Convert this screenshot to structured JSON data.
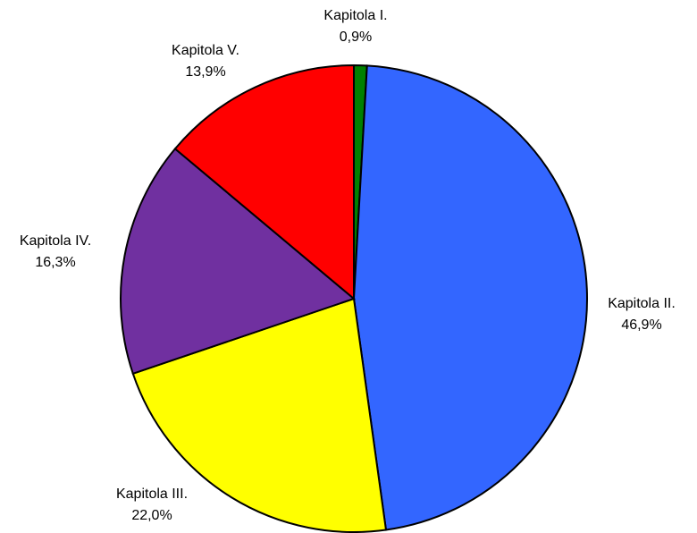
{
  "chart_data": {
    "type": "pie",
    "categories": [
      "Kapitola I.",
      "Kapitola II.",
      "Kapitola III.",
      "Kapitola IV.",
      "Kapitola V."
    ],
    "values": [
      0.9,
      46.9,
      22.0,
      16.3,
      13.9
    ],
    "value_labels": [
      "0,9%",
      "46,9%",
      "22,0%",
      "16,3%",
      "13,9%"
    ],
    "colors": [
      "#008000",
      "#3366ff",
      "#ffff00",
      "#7030a0",
      "#ff0000"
    ]
  }
}
